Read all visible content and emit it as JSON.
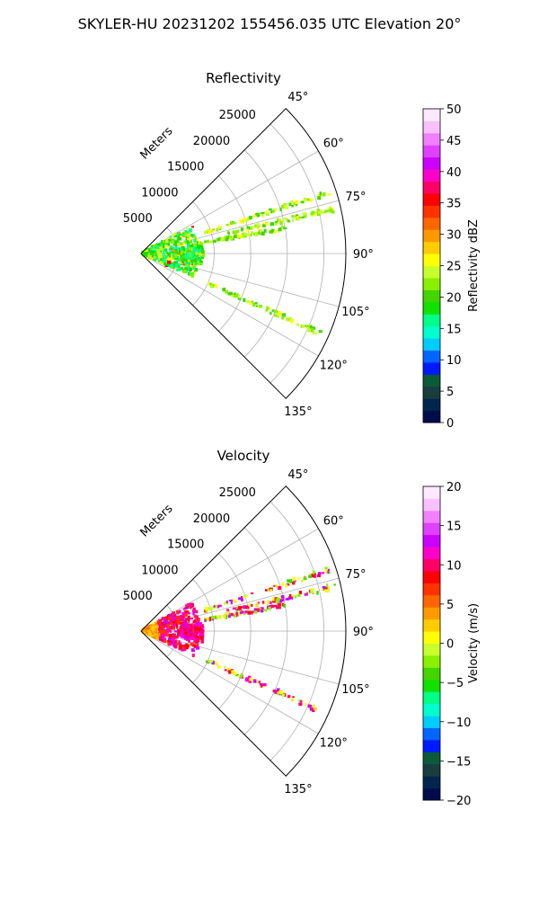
{
  "suptitle": "SKYLER-HU  20231202  155456.035 UTC Elevation 20°",
  "chart_data": [
    {
      "type": "polar-sector",
      "title": "Reflectivity",
      "radial_label": "Meters",
      "r_ticks": [
        "5000",
        "10000",
        "15000",
        "20000",
        "25000"
      ],
      "r_tick_values": [
        5000,
        10000,
        15000,
        20000,
        25000
      ],
      "rlim": [
        0,
        28000
      ],
      "theta_ticks": [
        "45°",
        "60°",
        "75°",
        "90°",
        "105°",
        "120°",
        "135°"
      ],
      "theta_tick_values": [
        45,
        60,
        75,
        90,
        105,
        120,
        135
      ],
      "thetalim": [
        45,
        135
      ],
      "grid": true,
      "colorbar": {
        "label": "Reflectivity dBZ",
        "range": [
          0,
          50
        ],
        "ticks": [
          "0",
          "5",
          "10",
          "15",
          "20",
          "25",
          "30",
          "35",
          "40",
          "45",
          "50"
        ],
        "tick_values": [
          0,
          5,
          10,
          15,
          20,
          25,
          30,
          35,
          40,
          45,
          50
        ],
        "colors": [
          "#000d4d",
          "#00264d",
          "#1a3d3d",
          "#0b5a3a",
          "#001aff",
          "#0066ff",
          "#00ccff",
          "#00ffcc",
          "#00ff88",
          "#11e000",
          "#44d400",
          "#88f000",
          "#c8ff2a",
          "#ffff00",
          "#ffcc00",
          "#ff9900",
          "#ff6600",
          "#ff3300",
          "#ff0000",
          "#ff0066",
          "#ff00cc",
          "#cc00ff",
          "#e040ff",
          "#f080ff",
          "#f8c0ff",
          "#fce8ff"
        ]
      }
    },
    {
      "type": "polar-sector",
      "title": "Velocity",
      "radial_label": "Meters",
      "r_ticks": [
        "5000",
        "10000",
        "15000",
        "20000",
        "25000"
      ],
      "r_tick_values": [
        5000,
        10000,
        15000,
        20000,
        25000
      ],
      "rlim": [
        0,
        28000
      ],
      "theta_ticks": [
        "45°",
        "60°",
        "75°",
        "90°",
        "105°",
        "120°",
        "135°"
      ],
      "theta_tick_values": [
        45,
        60,
        75,
        90,
        105,
        120,
        135
      ],
      "thetalim": [
        45,
        135
      ],
      "grid": true,
      "colorbar": {
        "label": "Velocity (m/s)",
        "range": [
          -20,
          20
        ],
        "ticks": [
          "−20",
          "−15",
          "−10",
          "−5",
          "0",
          "5",
          "10",
          "15",
          "20"
        ],
        "tick_values": [
          -20,
          -15,
          -10,
          -5,
          0,
          5,
          10,
          15,
          20
        ],
        "colors": [
          "#000d4d",
          "#00264d",
          "#1a3d3d",
          "#0b5a3a",
          "#001aff",
          "#0066ff",
          "#00ccff",
          "#00ffcc",
          "#00ff88",
          "#11e000",
          "#44d400",
          "#88f000",
          "#c8ff2a",
          "#ffff00",
          "#ffcc00",
          "#ff9900",
          "#ff6600",
          "#ff3300",
          "#ff0000",
          "#ff0066",
          "#ff00cc",
          "#cc00ff",
          "#e040ff",
          "#f080ff",
          "#f8c0ff",
          "#fce8ff"
        ]
      }
    }
  ]
}
